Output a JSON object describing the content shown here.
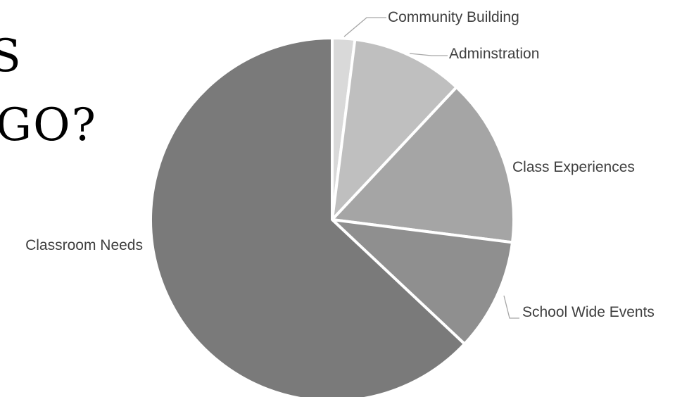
{
  "slide": {
    "heading_line_1": "S",
    "heading_line_2": "GO?"
  },
  "chart_data": {
    "type": "pie",
    "title": "",
    "start_angle_deg": 0,
    "direction": "clockwise",
    "categories": [
      "Community Building",
      "Adminstration",
      "Class Experiences",
      "School Wide Events",
      "Classroom Needs"
    ],
    "values": [
      2,
      10,
      15,
      10,
      63
    ],
    "unit": "percent",
    "colors": [
      "#d9d9d9",
      "#bfbfbf",
      "#a5a5a5",
      "#8f8f8f",
      "#7a7a7a"
    ],
    "slice_border_color": "#ffffff",
    "legend": "none",
    "labels": "outside, with leader lines"
  }
}
